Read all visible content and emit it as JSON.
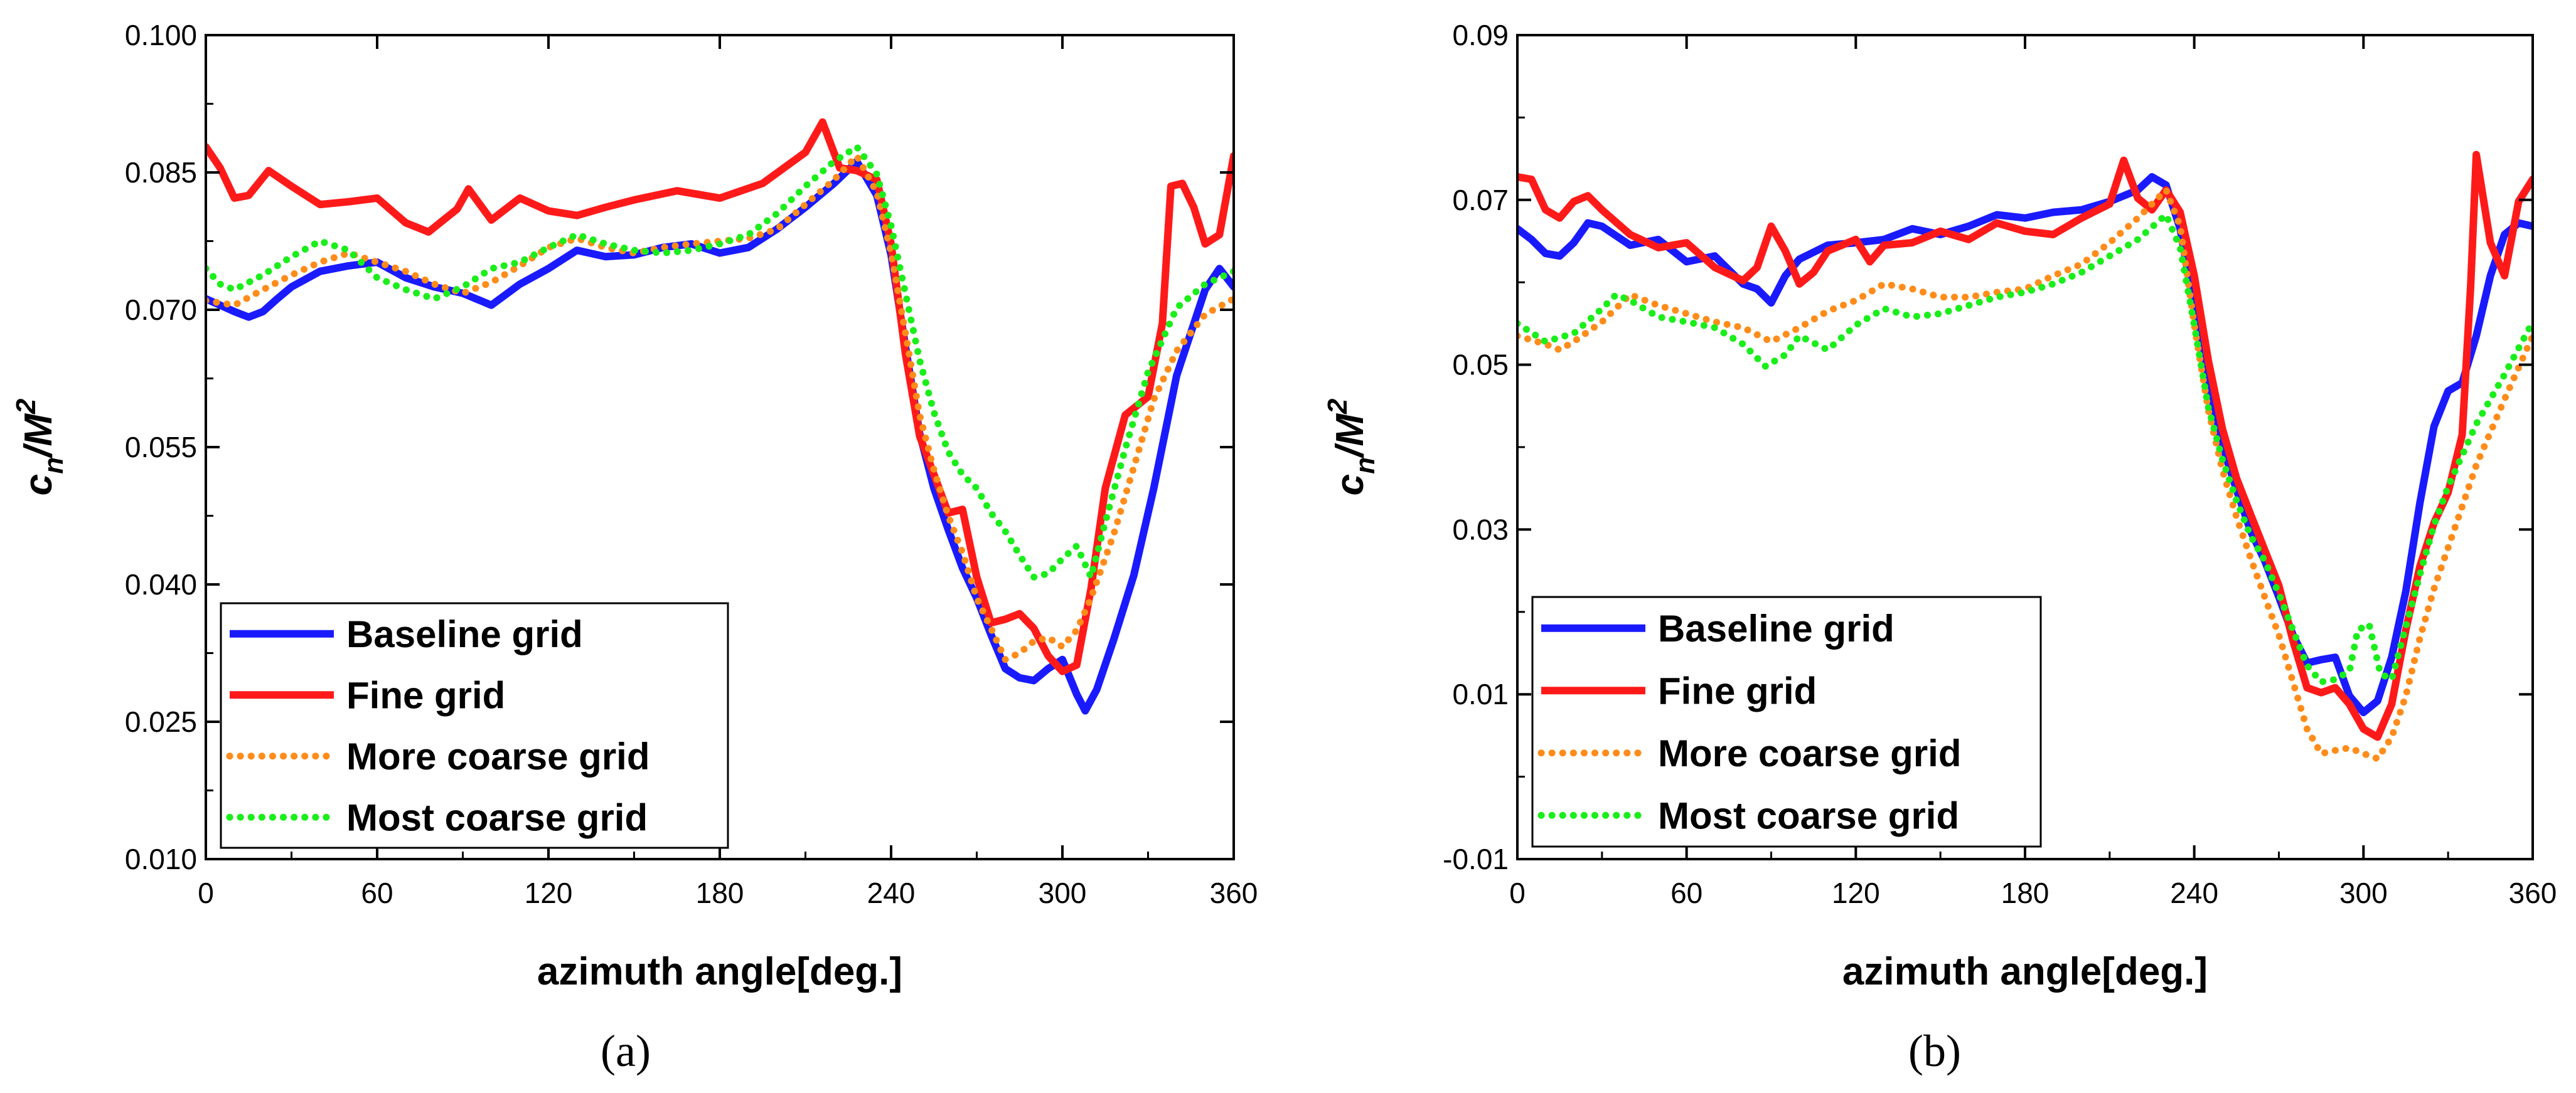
{
  "chart_data": [
    {
      "type": "line",
      "caption": "(a)",
      "xlabel": "azimuth angle[deg.]",
      "ylabel": "c_n M^2",
      "xlim": [
        0,
        360
      ],
      "ylim": [
        0.01,
        0.1
      ],
      "xticks": [
        "0",
        "60",
        "120",
        "180",
        "240",
        "300",
        "360"
      ],
      "yticks": [
        "0.010",
        "0.025",
        "0.040",
        "0.055",
        "0.070",
        "0.085",
        "0.100"
      ],
      "legend": "lower-left",
      "series": [
        {
          "name": "Baseline grid",
          "color": "#1a1aff",
          "style": "solid",
          "x": [
            0,
            5,
            10,
            15,
            20,
            25,
            30,
            40,
            50,
            60,
            70,
            80,
            90,
            100,
            110,
            120,
            130,
            140,
            150,
            160,
            170,
            180,
            190,
            200,
            210,
            220,
            228,
            235,
            240,
            245,
            250,
            255,
            260,
            265,
            270,
            275,
            280,
            285,
            290,
            295,
            300,
            305,
            308,
            312,
            318,
            325,
            332,
            340,
            350,
            355,
            360
          ],
          "y": [
            0.0712,
            0.0705,
            0.0698,
            0.0692,
            0.0698,
            0.0712,
            0.0725,
            0.0742,
            0.0748,
            0.0752,
            0.0735,
            0.0725,
            0.0718,
            0.0705,
            0.0728,
            0.0745,
            0.0765,
            0.0758,
            0.076,
            0.0768,
            0.0772,
            0.0762,
            0.0768,
            0.0788,
            0.0812,
            0.0838,
            0.0862,
            0.0825,
            0.076,
            0.066,
            0.0565,
            0.0505,
            0.046,
            0.0418,
            0.0385,
            0.0345,
            0.0308,
            0.0298,
            0.0295,
            0.0308,
            0.0318,
            0.028,
            0.0262,
            0.0285,
            0.034,
            0.041,
            0.0505,
            0.0628,
            0.0722,
            0.0745,
            0.0725
          ]
        },
        {
          "name": "Fine grid",
          "color": "#ff1a1a",
          "style": "solid",
          "x": [
            0,
            5,
            10,
            15,
            22,
            30,
            40,
            50,
            60,
            70,
            78,
            88,
            92,
            100,
            110,
            120,
            130,
            140,
            150,
            165,
            180,
            195,
            210,
            216,
            222,
            228,
            235,
            240,
            245,
            250,
            255,
            260,
            265,
            270,
            275,
            280,
            285,
            290,
            295,
            300,
            305,
            310,
            315,
            322,
            330,
            335,
            338,
            342,
            346,
            350,
            355,
            360
          ],
          "y": [
            0.0878,
            0.0855,
            0.0822,
            0.0825,
            0.0852,
            0.0835,
            0.0815,
            0.0818,
            0.0822,
            0.0795,
            0.0785,
            0.081,
            0.0832,
            0.0798,
            0.0822,
            0.0808,
            0.0803,
            0.0812,
            0.082,
            0.083,
            0.0822,
            0.0838,
            0.0872,
            0.0905,
            0.0855,
            0.0852,
            0.0842,
            0.0772,
            0.0652,
            0.0562,
            0.052,
            0.0478,
            0.0482,
            0.0408,
            0.0358,
            0.0362,
            0.0368,
            0.0352,
            0.0322,
            0.0305,
            0.0312,
            0.0395,
            0.0505,
            0.0585,
            0.0605,
            0.0685,
            0.0835,
            0.0838,
            0.0812,
            0.0772,
            0.0782,
            0.0868
          ]
        },
        {
          "name": "More coarse grid",
          "color": "#ff8c1a",
          "style": "dotted",
          "x": [
            0,
            10,
            20,
            30,
            40,
            50,
            60,
            70,
            80,
            90,
            100,
            110,
            120,
            130,
            140,
            150,
            160,
            170,
            180,
            190,
            200,
            210,
            220,
            228,
            235,
            240,
            245,
            250,
            255,
            260,
            265,
            270,
            275,
            280,
            285,
            290,
            295,
            300,
            305,
            310,
            318,
            325,
            332,
            340,
            350,
            360
          ],
          "y": [
            0.071,
            0.0705,
            0.0722,
            0.0738,
            0.0752,
            0.0762,
            0.0752,
            0.0742,
            0.0728,
            0.0718,
            0.073,
            0.0748,
            0.0768,
            0.0778,
            0.0768,
            0.0762,
            0.0768,
            0.0772,
            0.0775,
            0.0778,
            0.0788,
            0.0815,
            0.0842,
            0.0868,
            0.0828,
            0.0762,
            0.0675,
            0.0585,
            0.0525,
            0.0475,
            0.0435,
            0.0385,
            0.0352,
            0.0318,
            0.0325,
            0.0338,
            0.0342,
            0.0332,
            0.035,
            0.0385,
            0.0455,
            0.0528,
            0.0602,
            0.0655,
            0.0695,
            0.0712
          ]
        },
        {
          "name": "Most coarse grid",
          "color": "#1aee1a",
          "style": "dotted",
          "x": [
            0,
            5,
            10,
            20,
            30,
            40,
            50,
            60,
            70,
            80,
            90,
            100,
            110,
            120,
            130,
            140,
            150,
            160,
            170,
            180,
            190,
            200,
            210,
            220,
            228,
            235,
            240,
            245,
            250,
            255,
            260,
            265,
            270,
            275,
            280,
            285,
            290,
            295,
            300,
            305,
            310,
            315,
            322,
            330,
            340,
            350,
            360
          ],
          "y": [
            0.0745,
            0.0728,
            0.0722,
            0.0738,
            0.0758,
            0.0775,
            0.0765,
            0.0735,
            0.0722,
            0.0712,
            0.0725,
            0.0745,
            0.0752,
            0.0768,
            0.0782,
            0.0772,
            0.0765,
            0.0762,
            0.0765,
            0.0772,
            0.0782,
            0.0805,
            0.0835,
            0.0862,
            0.0878,
            0.0848,
            0.0792,
            0.0718,
            0.0645,
            0.0588,
            0.0545,
            0.052,
            0.0505,
            0.0478,
            0.0458,
            0.0432,
            0.0408,
            0.0412,
            0.0428,
            0.0442,
            0.0408,
            0.0468,
            0.0548,
            0.0632,
            0.0702,
            0.0728,
            0.0742
          ]
        }
      ]
    },
    {
      "type": "line",
      "caption": "(b)",
      "xlabel": "azimuth angle[deg.]",
      "ylabel": "c_n M^2",
      "xlim": [
        0,
        360
      ],
      "ylim": [
        -0.01,
        0.09
      ],
      "xticks": [
        "0",
        "60",
        "120",
        "180",
        "240",
        "300",
        "360"
      ],
      "yticks": [
        "-0.01",
        "0.01",
        "0.03",
        "0.05",
        "0.07",
        "0.09"
      ],
      "legend": "lower-left",
      "series": [
        {
          "name": "Baseline grid",
          "color": "#1a1aff",
          "style": "solid",
          "x": [
            0,
            5,
            10,
            15,
            20,
            25,
            30,
            40,
            50,
            60,
            70,
            80,
            85,
            90,
            95,
            100,
            110,
            120,
            130,
            140,
            150,
            160,
            170,
            180,
            190,
            200,
            210,
            220,
            225,
            230,
            235,
            240,
            245,
            250,
            255,
            260,
            265,
            270,
            275,
            280,
            285,
            290,
            295,
            300,
            305,
            310,
            315,
            320,
            325,
            330,
            335,
            340,
            345,
            350,
            355,
            360
          ],
          "y": [
            0.0665,
            0.0652,
            0.0635,
            0.0632,
            0.0648,
            0.0672,
            0.0668,
            0.0645,
            0.0652,
            0.0625,
            0.0632,
            0.0598,
            0.0592,
            0.0575,
            0.0608,
            0.0628,
            0.0645,
            0.0648,
            0.0652,
            0.0665,
            0.0658,
            0.0668,
            0.0682,
            0.0678,
            0.0685,
            0.0688,
            0.0698,
            0.0712,
            0.0728,
            0.0718,
            0.0665,
            0.0568,
            0.0478,
            0.0402,
            0.0348,
            0.0298,
            0.0262,
            0.0218,
            0.0172,
            0.0138,
            0.0142,
            0.0145,
            0.0098,
            0.0078,
            0.0092,
            0.0145,
            0.0225,
            0.0332,
            0.0425,
            0.0468,
            0.0478,
            0.0535,
            0.0608,
            0.0658,
            0.0672,
            0.0668
          ]
        },
        {
          "name": "Fine grid",
          "color": "#ff1a1a",
          "style": "solid",
          "x": [
            0,
            5,
            10,
            15,
            20,
            25,
            30,
            40,
            50,
            60,
            70,
            80,
            85,
            90,
            95,
            100,
            105,
            110,
            120,
            125,
            130,
            140,
            150,
            160,
            170,
            180,
            190,
            200,
            210,
            215,
            220,
            225,
            230,
            235,
            240,
            245,
            250,
            255,
            260,
            265,
            270,
            275,
            280,
            285,
            290,
            295,
            300,
            305,
            310,
            315,
            320,
            325,
            330,
            335,
            338,
            340,
            345,
            350,
            355,
            360
          ],
          "y": [
            0.0728,
            0.0725,
            0.0688,
            0.0678,
            0.0698,
            0.0705,
            0.0688,
            0.0658,
            0.0642,
            0.0648,
            0.0618,
            0.0602,
            0.0618,
            0.0668,
            0.0638,
            0.0598,
            0.0612,
            0.0638,
            0.0652,
            0.0625,
            0.0645,
            0.0648,
            0.0662,
            0.0652,
            0.0672,
            0.0662,
            0.0658,
            0.0678,
            0.0695,
            0.0748,
            0.0702,
            0.0688,
            0.0712,
            0.0685,
            0.0608,
            0.0505,
            0.0422,
            0.0362,
            0.0318,
            0.0275,
            0.0232,
            0.0165,
            0.0108,
            0.0102,
            0.0108,
            0.0088,
            0.0058,
            0.0048,
            0.0088,
            0.0178,
            0.0255,
            0.0308,
            0.0345,
            0.0415,
            0.0595,
            0.0755,
            0.0648,
            0.0608,
            0.0698,
            0.0725
          ]
        },
        {
          "name": "More coarse grid",
          "color": "#ff8c1a",
          "style": "dotted",
          "x": [
            0,
            10,
            15,
            20,
            30,
            40,
            50,
            60,
            70,
            80,
            90,
            100,
            110,
            120,
            130,
            140,
            150,
            160,
            170,
            180,
            190,
            200,
            210,
            220,
            230,
            235,
            240,
            245,
            250,
            255,
            260,
            265,
            270,
            275,
            280,
            285,
            290,
            295,
            300,
            305,
            310,
            315,
            320,
            325,
            330,
            340,
            350,
            360
          ],
          "y": [
            0.0535,
            0.0525,
            0.0518,
            0.0528,
            0.0552,
            0.0585,
            0.0572,
            0.0562,
            0.0552,
            0.0545,
            0.0528,
            0.0545,
            0.0565,
            0.0578,
            0.0598,
            0.0592,
            0.0582,
            0.0582,
            0.0588,
            0.0592,
            0.0608,
            0.0622,
            0.0648,
            0.0678,
            0.0712,
            0.0668,
            0.0548,
            0.0445,
            0.0372,
            0.0315,
            0.0265,
            0.0218,
            0.0172,
            0.0115,
            0.0058,
            0.0028,
            0.0032,
            0.0035,
            0.0028,
            0.0022,
            0.0048,
            0.0098,
            0.0168,
            0.0228,
            0.0278,
            0.0378,
            0.0458,
            0.0535
          ]
        },
        {
          "name": "Most coarse grid",
          "color": "#1aee1a",
          "style": "dotted",
          "x": [
            0,
            10,
            20,
            30,
            35,
            40,
            50,
            60,
            70,
            80,
            88,
            95,
            100,
            110,
            120,
            130,
            140,
            150,
            160,
            170,
            180,
            190,
            200,
            210,
            220,
            230,
            235,
            240,
            245,
            250,
            255,
            260,
            265,
            270,
            275,
            280,
            285,
            290,
            295,
            298,
            302,
            306,
            310,
            315,
            320,
            325,
            330,
            340,
            350,
            360
          ],
          "y": [
            0.055,
            0.0528,
            0.0538,
            0.0568,
            0.0585,
            0.0578,
            0.0558,
            0.0552,
            0.0545,
            0.0525,
            0.0498,
            0.0512,
            0.0535,
            0.0518,
            0.0548,
            0.0568,
            0.0558,
            0.0562,
            0.0572,
            0.0582,
            0.0588,
            0.0598,
            0.0612,
            0.0632,
            0.0652,
            0.0682,
            0.0642,
            0.0548,
            0.0448,
            0.0385,
            0.0335,
            0.0292,
            0.0262,
            0.0222,
            0.0178,
            0.0135,
            0.0115,
            0.0118,
            0.0128,
            0.0178,
            0.0185,
            0.0125,
            0.0118,
            0.0182,
            0.0245,
            0.0305,
            0.0352,
            0.0428,
            0.0488,
            0.0552
          ]
        }
      ]
    }
  ]
}
